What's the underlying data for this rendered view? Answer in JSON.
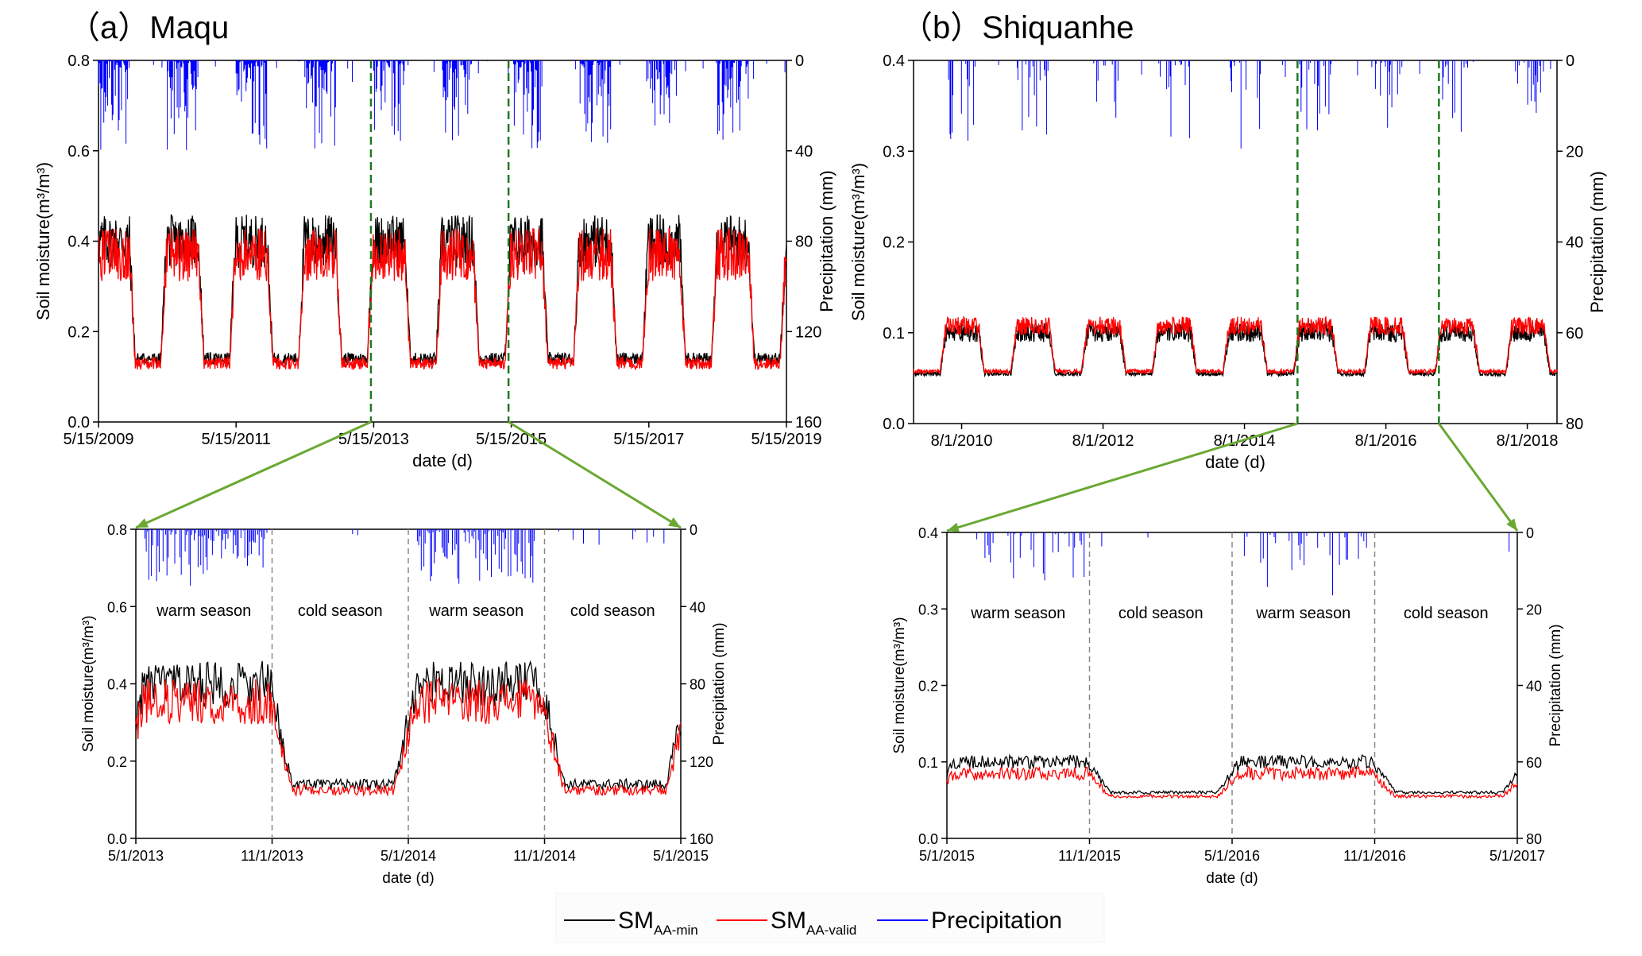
{
  "figure": {
    "panel_a_title": "（a）Maqu",
    "panel_b_title": "（b）Shiquanhe"
  },
  "colors": {
    "sm_min": "#000000",
    "sm_valid": "#ff0000",
    "precip": "#0000ff",
    "zoom_arrow": "#6aa832",
    "zoom_line": "#1e7a1e"
  },
  "legend": {
    "sm_min_main": "SM",
    "sm_min_sub": "AA-min",
    "sm_valid_main": "SM",
    "sm_valid_sub": "AA-valid",
    "precip": "Precipitation"
  },
  "chart_data": [
    {
      "id": "maqu_full",
      "type": "line",
      "title": "（a）Maqu",
      "xlabel": "date (d)",
      "ylabel": "Soil moisture(m³/m³)",
      "y2label": "Precipitation (mm)",
      "x_ticks": [
        "5/15/2009",
        "5/15/2011",
        "5/15/2013",
        "5/15/2015",
        "5/15/2017",
        "5/15/2019"
      ],
      "x_range_years": [
        2009.37,
        2019.37
      ],
      "ylim": [
        0.0,
        0.8
      ],
      "y_ticks": [
        "0.0",
        "0.2",
        "0.4",
        "0.6",
        "0.8"
      ],
      "y2lim": [
        160,
        0
      ],
      "y2_ticks": [
        "0",
        "40",
        "80",
        "120",
        "160"
      ],
      "sm_base": 0.14,
      "sm_peak": 0.4,
      "valid_offset": -0.02,
      "precip_peak_mm": 40,
      "warm_season_months": "May-Oct",
      "zoom_range_years": [
        2013.33,
        2015.33
      ],
      "series": [
        {
          "name": "SM AA-min",
          "color": "#000000"
        },
        {
          "name": "SM AA-valid",
          "color": "#ff0000"
        },
        {
          "name": "Precipitation",
          "color": "#0000ff"
        }
      ]
    },
    {
      "id": "maqu_zoom",
      "type": "line",
      "xlabel": "date (d)",
      "ylabel": "Soil moisture(m³/m³)",
      "y2label": "Precipitation (mm)",
      "x_ticks": [
        "5/1/2013",
        "11/1/2013",
        "5/1/2014",
        "11/1/2014",
        "5/1/2015"
      ],
      "x_range_years": [
        2013.33,
        2015.33
      ],
      "ylim": [
        0.0,
        0.8
      ],
      "y_ticks": [
        "0.0",
        "0.2",
        "0.4",
        "0.6",
        "0.8"
      ],
      "y2lim": [
        160,
        0
      ],
      "y2_ticks": [
        "0",
        "40",
        "80",
        "120",
        "160"
      ],
      "season_labels": [
        "warm season",
        "cold season",
        "warm season",
        "cold season"
      ],
      "season_boundaries_years": [
        2013.83,
        2014.33,
        2014.83
      ],
      "sm_base": 0.14,
      "sm_peak": 0.4,
      "valid_offset": -0.03,
      "precip_peak_mm": 30
    },
    {
      "id": "shiquanhe_full",
      "type": "line",
      "title": "（b）Shiquanhe",
      "xlabel": "date (d)",
      "ylabel": "Soil moisture(m³/m³)",
      "y2label": "Precipitation (mm)",
      "x_ticks": [
        "8/1/2010",
        "8/1/2012",
        "8/1/2014",
        "8/1/2016",
        "8/1/2018"
      ],
      "x_range_years": [
        2009.9,
        2019.0
      ],
      "x_tick_years": [
        2010.58,
        2012.58,
        2014.58,
        2016.58,
        2018.58
      ],
      "ylim": [
        0.0,
        0.4
      ],
      "y_ticks": [
        "0.0",
        "0.1",
        "0.2",
        "0.3",
        "0.4"
      ],
      "y2lim": [
        80,
        0
      ],
      "y2_ticks": [
        "0",
        "20",
        "40",
        "60",
        "80"
      ],
      "sm_base": 0.055,
      "sm_peak": 0.1,
      "valid_offset": 0.005,
      "precip_peak_mm": 20,
      "zoom_range_years": [
        2015.33,
        2017.33
      ]
    },
    {
      "id": "shiquanhe_zoom",
      "type": "line",
      "xlabel": "date (d)",
      "ylabel": "Soil moisture(m³/m³)",
      "y2label": "Precipitation (mm)",
      "x_ticks": [
        "5/1/2015",
        "11/1/2015",
        "5/1/2016",
        "11/1/2016",
        "5/1/2017"
      ],
      "x_range_years": [
        2015.33,
        2017.33
      ],
      "ylim": [
        0.0,
        0.4
      ],
      "y_ticks": [
        "0.0",
        "0.1",
        "0.2",
        "0.3",
        "0.4"
      ],
      "y2lim": [
        80,
        0
      ],
      "y2_ticks": [
        "0",
        "20",
        "40",
        "60",
        "80"
      ],
      "season_labels": [
        "warm season",
        "cold season",
        "warm season",
        "cold season"
      ],
      "season_boundaries_years": [
        2015.83,
        2016.33,
        2016.83
      ],
      "sm_base": 0.06,
      "sm_peak": 0.1,
      "valid_offset": -0.01,
      "precip_peak_mm": 20
    }
  ]
}
